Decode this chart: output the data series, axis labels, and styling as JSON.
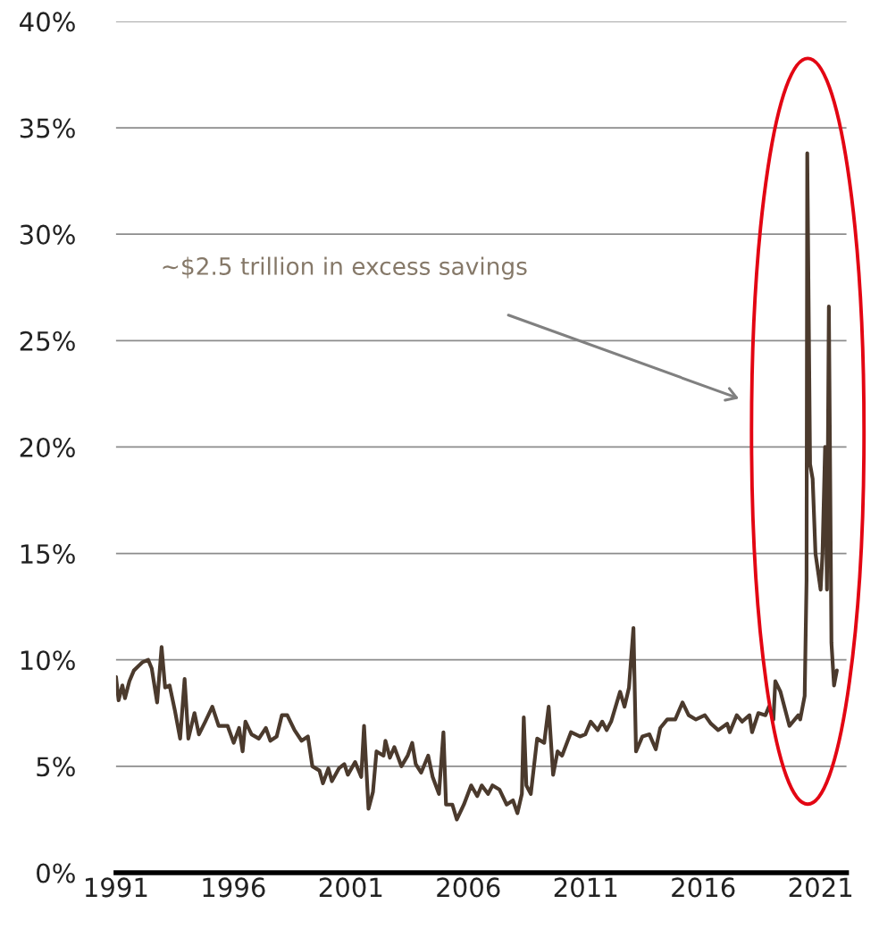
{
  "chart_data": {
    "type": "line",
    "x": [
      1991.0,
      1991.11,
      1991.27,
      1991.38,
      1991.57,
      1991.76,
      1991.95,
      1992.14,
      1992.37,
      1992.52,
      1992.75,
      1992.94,
      1993.09,
      1993.28,
      1993.51,
      1993.73,
      1993.92,
      1994.08,
      1994.34,
      1994.53,
      1994.8,
      1995.1,
      1995.37,
      1995.75,
      1996.01,
      1996.24,
      1996.39,
      1996.51,
      1996.77,
      1997.08,
      1997.38,
      1997.57,
      1997.84,
      1998.06,
      1998.29,
      1998.6,
      1998.9,
      1999.17,
      1999.36,
      1999.66,
      1999.81,
      2000.04,
      2000.19,
      2000.49,
      2000.72,
      2000.87,
      2001.18,
      2001.44,
      2001.56,
      2001.75,
      2001.94,
      2002.09,
      2002.39,
      2002.47,
      2002.66,
      2002.85,
      2003.15,
      2003.42,
      2003.61,
      2003.76,
      2003.99,
      2004.29,
      2004.48,
      2004.75,
      2004.94,
      2005.05,
      2005.32,
      2005.51,
      2005.81,
      2006.12,
      2006.38,
      2006.57,
      2006.84,
      2007.03,
      2007.33,
      2007.63,
      2007.9,
      2008.09,
      2008.28,
      2008.36,
      2008.47,
      2008.66,
      2008.93,
      2009.23,
      2009.42,
      2009.61,
      2009.8,
      2009.99,
      2010.37,
      2010.75,
      2010.98,
      2011.21,
      2011.51,
      2011.7,
      2011.89,
      2012.08,
      2012.27,
      2012.46,
      2012.65,
      2012.84,
      2013.03,
      2013.14,
      2013.41,
      2013.71,
      2013.98,
      2014.17,
      2014.47,
      2014.81,
      2015.12,
      2015.38,
      2015.69,
      2016.07,
      2016.33,
      2016.64,
      2017.02,
      2017.13,
      2017.43,
      2017.66,
      2017.97,
      2018.08,
      2018.35,
      2018.65,
      2018.8,
      2018.99,
      2019.07,
      2019.29,
      2019.67,
      2020.05,
      2020.13,
      2020.32,
      2020.4,
      2020.43,
      2020.55,
      2020.66,
      2020.78,
      2021.0,
      2021.08,
      2021.19,
      2021.27,
      2021.35,
      2021.46,
      2021.57,
      2021.69
    ],
    "series": [
      {
        "color": "#4b3a2d",
        "values": [
          9.2,
          8.1,
          8.8,
          8.2,
          9.0,
          9.5,
          9.7,
          9.9,
          10.0,
          9.6,
          8.0,
          10.6,
          8.7,
          8.8,
          7.6,
          6.3,
          9.1,
          6.3,
          7.5,
          6.5,
          7.1,
          7.8,
          6.9,
          6.9,
          6.1,
          6.8,
          5.7,
          7.1,
          6.5,
          6.3,
          6.8,
          6.2,
          6.4,
          7.4,
          7.4,
          6.7,
          6.2,
          6.4,
          5.0,
          4.8,
          4.2,
          4.9,
          4.3,
          4.9,
          5.1,
          4.6,
          5.2,
          4.5,
          6.9,
          3.0,
          3.8,
          5.7,
          5.5,
          6.2,
          5.4,
          5.9,
          5.0,
          5.5,
          6.1,
          5.1,
          4.7,
          5.5,
          4.5,
          3.7,
          6.6,
          3.2,
          3.2,
          2.5,
          3.2,
          4.1,
          3.6,
          4.1,
          3.7,
          4.1,
          3.9,
          3.2,
          3.4,
          2.8,
          3.7,
          7.3,
          4.1,
          3.7,
          6.3,
          6.1,
          7.8,
          4.6,
          5.7,
          5.5,
          6.6,
          6.4,
          6.5,
          7.1,
          6.7,
          7.1,
          6.7,
          7.1,
          7.8,
          8.5,
          7.8,
          8.7,
          11.5,
          5.7,
          6.4,
          6.5,
          5.8,
          6.8,
          7.2,
          7.2,
          8.0,
          7.4,
          7.2,
          7.4,
          7.0,
          6.7,
          7.0,
          6.6,
          7.4,
          7.1,
          7.4,
          6.6,
          7.5,
          7.4,
          7.8,
          7.2,
          9.0,
          8.5,
          6.9,
          7.4,
          7.2,
          8.3,
          13.7,
          33.8,
          19.2,
          18.5,
          15.0,
          13.3,
          15.0,
          20.0,
          13.3,
          26.6,
          10.8,
          8.8,
          9.5
        ]
      }
    ],
    "xlim": [
      1991,
      2022.1
    ],
    "xticks": [
      1991,
      1996,
      2001,
      2006,
      2011,
      2016,
      2021
    ],
    "ylim": [
      0,
      40
    ],
    "yticks": [
      {
        "value": 0,
        "label": "0%"
      },
      {
        "value": 5,
        "label": "5%"
      },
      {
        "value": 10,
        "label": "10%"
      },
      {
        "value": 15,
        "label": "15%"
      },
      {
        "value": 20,
        "label": "20%"
      },
      {
        "value": 25,
        "label": "25%"
      },
      {
        "value": 30,
        "label": "30%"
      },
      {
        "value": 35,
        "label": "35%"
      },
      {
        "value": 40,
        "label": "40%"
      }
    ],
    "grid": "y",
    "annotations": [
      "~$2.5 trillion in excess savings"
    ],
    "legend": false,
    "marker": "none",
    "line_style": "solid"
  }
}
